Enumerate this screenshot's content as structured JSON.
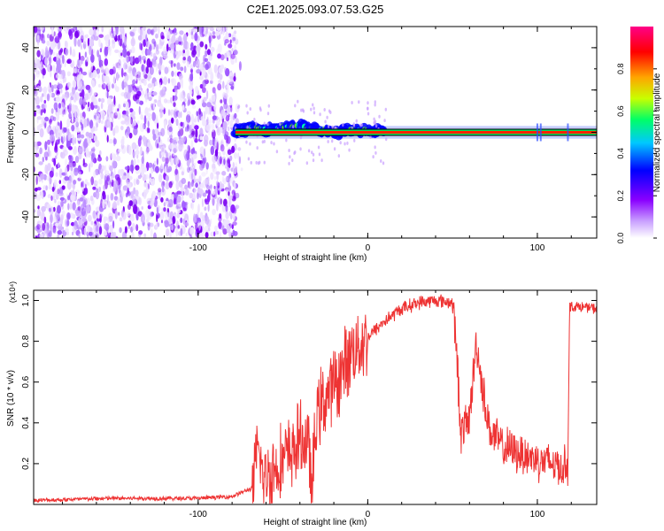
{
  "title": "C2E1.2025.093.07.53.G25",
  "chart_data": [
    {
      "type": "heatmap",
      "xlabel": "Height of straight line (km)",
      "ylabel": "Frequency (Hz)",
      "xlim": [
        -197,
        135
      ],
      "ylim": [
        -50,
        50
      ],
      "xticks": [
        -100,
        0,
        100
      ],
      "xtick_labels": [
        "-100",
        "0",
        "100"
      ],
      "yticks": [
        -40,
        -20,
        0,
        20,
        40
      ],
      "ytick_labels": [
        "-40",
        "-20",
        "0",
        "20",
        "40"
      ],
      "noise_region_x": [
        -197,
        -77
      ],
      "signal_line": {
        "x_start": -78,
        "x_end": 135,
        "frequency_hz": 0
      },
      "signal_track": {
        "x": [
          -78,
          -70,
          -60,
          -50,
          -40,
          -30,
          -20,
          -10,
          0,
          10
        ],
        "frequency_hz": [
          0,
          2,
          1,
          2,
          3,
          1,
          0,
          1,
          1,
          0
        ]
      },
      "colorbar": {
        "label": "Normalized spectral amplitude",
        "range": [
          0,
          1
        ],
        "ticks": [
          0.0,
          0.2,
          0.4,
          0.6,
          0.8
        ],
        "tick_labels": [
          "0.0",
          "0.2",
          "0.4",
          "0.6",
          "0.8"
        ],
        "colors": [
          "#ffffff",
          "#c9a0ff",
          "#8a00ff",
          "#0000ff",
          "#00c8ff",
          "#00ff66",
          "#c8ff00",
          "#ffa500",
          "#ff0000",
          "#ff0088"
        ]
      }
    },
    {
      "type": "line",
      "xlabel": "Height of straight line (km)",
      "ylabel": "SNR (10 * v/v)",
      "y_multiplier": "(x10⁴)",
      "xlim": [
        -197,
        135
      ],
      "ylim": [
        0,
        1.05
      ],
      "xticks": [
        -100,
        0,
        100
      ],
      "xtick_labels": [
        "-100",
        "0",
        "100"
      ],
      "yticks": [
        0.2,
        0.4,
        0.6,
        0.8,
        1.0
      ],
      "ytick_labels": [
        "0.2",
        "0.4",
        "0.6",
        "0.8",
        "1.0"
      ],
      "color": "#ee3333",
      "series": [
        {
          "x": [
            -197,
            -150,
            -100,
            -80,
            -68,
            -64,
            -62,
            -58,
            -50,
            -45,
            -40,
            -35,
            -33,
            -30,
            -25,
            -20,
            -15,
            -10,
            0,
            10,
            20,
            30,
            40,
            50,
            52,
            55,
            60,
            64,
            68,
            72,
            80,
            90,
            100,
            110,
            115,
            118,
            119,
            125,
            135
          ],
          "y": [
            0.02,
            0.03,
            0.03,
            0.04,
            0.08,
            0.28,
            0.12,
            0.15,
            0.22,
            0.25,
            0.32,
            0.3,
            0.05,
            0.45,
            0.52,
            0.58,
            0.65,
            0.75,
            0.82,
            0.9,
            0.96,
            0.99,
            1.0,
            0.99,
            0.8,
            0.35,
            0.42,
            0.8,
            0.55,
            0.36,
            0.28,
            0.25,
            0.22,
            0.2,
            0.18,
            0.2,
            0.97,
            0.97,
            0.96
          ]
        }
      ]
    }
  ]
}
